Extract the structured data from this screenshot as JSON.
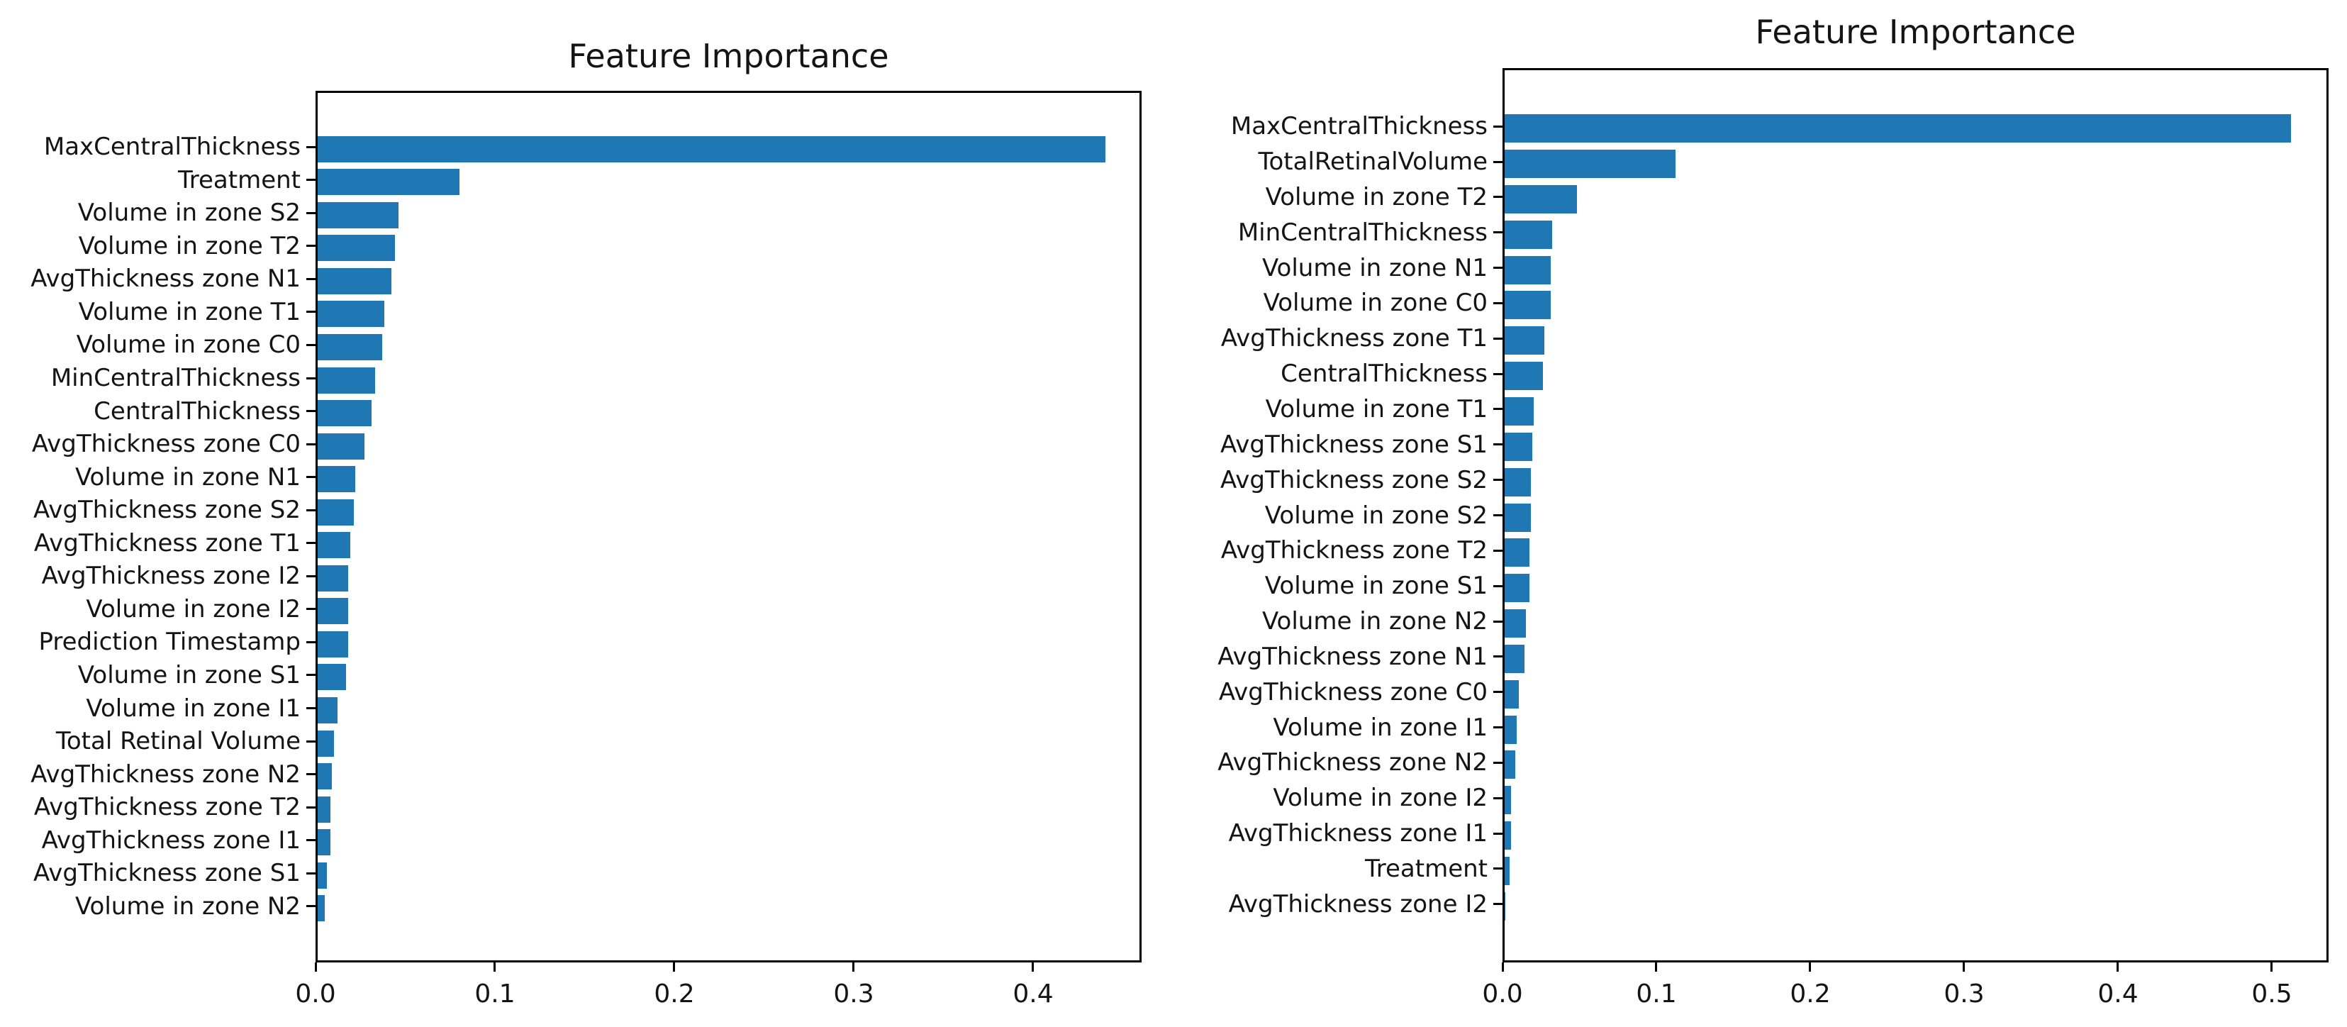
{
  "figure": {
    "background": "#ffffff",
    "bar_color": "#1f77b4",
    "spine_color": "#000000",
    "text_color": "#141414"
  },
  "chart_data": [
    {
      "type": "bar",
      "orientation": "horizontal",
      "title": "Feature Importance",
      "xlabel": "",
      "ylabel": "",
      "grid": false,
      "legend": "none",
      "xlim": [
        0,
        0.4605
      ],
      "xtick_labels": [
        "0.0",
        "0.1",
        "0.2",
        "0.3",
        "0.4"
      ],
      "xtick_values": [
        0.0,
        0.1,
        0.2,
        0.3,
        0.4
      ],
      "categories": [
        "MaxCentralThickness",
        "Treatment",
        "Volume in zone S2",
        "Volume in zone T2",
        "AvgThickness zone N1",
        "Volume in zone T1",
        "Volume in zone C0",
        "MinCentralThickness",
        "CentralThickness",
        "AvgThickness zone C0",
        "Volume in zone N1",
        "AvgThickness zone S2",
        "AvgThickness zone T1",
        "AvgThickness zone I2",
        "Volume in zone I2",
        "Prediction Timestamp",
        "Volume in zone S1",
        "Volume in zone I1",
        "Total Retinal Volume",
        "AvgThickness zone N2",
        "AvgThickness zone T2",
        "AvgThickness zone I1",
        "AvgThickness zone S1",
        "Volume in zone N2"
      ],
      "values": [
        0.439,
        0.079,
        0.045,
        0.043,
        0.041,
        0.037,
        0.036,
        0.032,
        0.03,
        0.026,
        0.021,
        0.02,
        0.018,
        0.017,
        0.017,
        0.017,
        0.016,
        0.011,
        0.009,
        0.008,
        0.007,
        0.007,
        0.005,
        0.004
      ]
    },
    {
      "type": "bar",
      "orientation": "horizontal",
      "title": "Feature Importance",
      "xlabel": "",
      "ylabel": "",
      "grid": false,
      "legend": "none",
      "xlim": [
        0,
        0.5369
      ],
      "xtick_labels": [
        "0.0",
        "0.1",
        "0.2",
        "0.3",
        "0.4",
        "0.5"
      ],
      "xtick_values": [
        0.0,
        0.1,
        0.2,
        0.3,
        0.4,
        0.5
      ],
      "categories": [
        "MaxCentralThickness",
        "TotalRetinalVolume",
        "Volume in zone T2",
        "MinCentralThickness",
        "Volume in zone N1",
        "Volume in zone C0",
        "AvgThickness zone T1",
        "CentralThickness",
        "Volume in zone T1",
        "AvgThickness zone S1",
        "AvgThickness zone S2",
        "Volume in zone S2",
        "AvgThickness zone T2",
        "Volume in zone S1",
        "Volume in zone N2",
        "AvgThickness zone N1",
        "AvgThickness zone C0",
        "Volume in zone I1",
        "AvgThickness zone N2",
        "Volume in zone I2",
        "AvgThickness zone I1",
        "Treatment",
        "AvgThickness zone I2"
      ],
      "values": [
        0.511,
        0.111,
        0.047,
        0.031,
        0.03,
        0.03,
        0.026,
        0.025,
        0.019,
        0.018,
        0.017,
        0.017,
        0.016,
        0.016,
        0.014,
        0.013,
        0.009,
        0.008,
        0.007,
        0.004,
        0.004,
        0.003,
        0.0005
      ]
    }
  ]
}
